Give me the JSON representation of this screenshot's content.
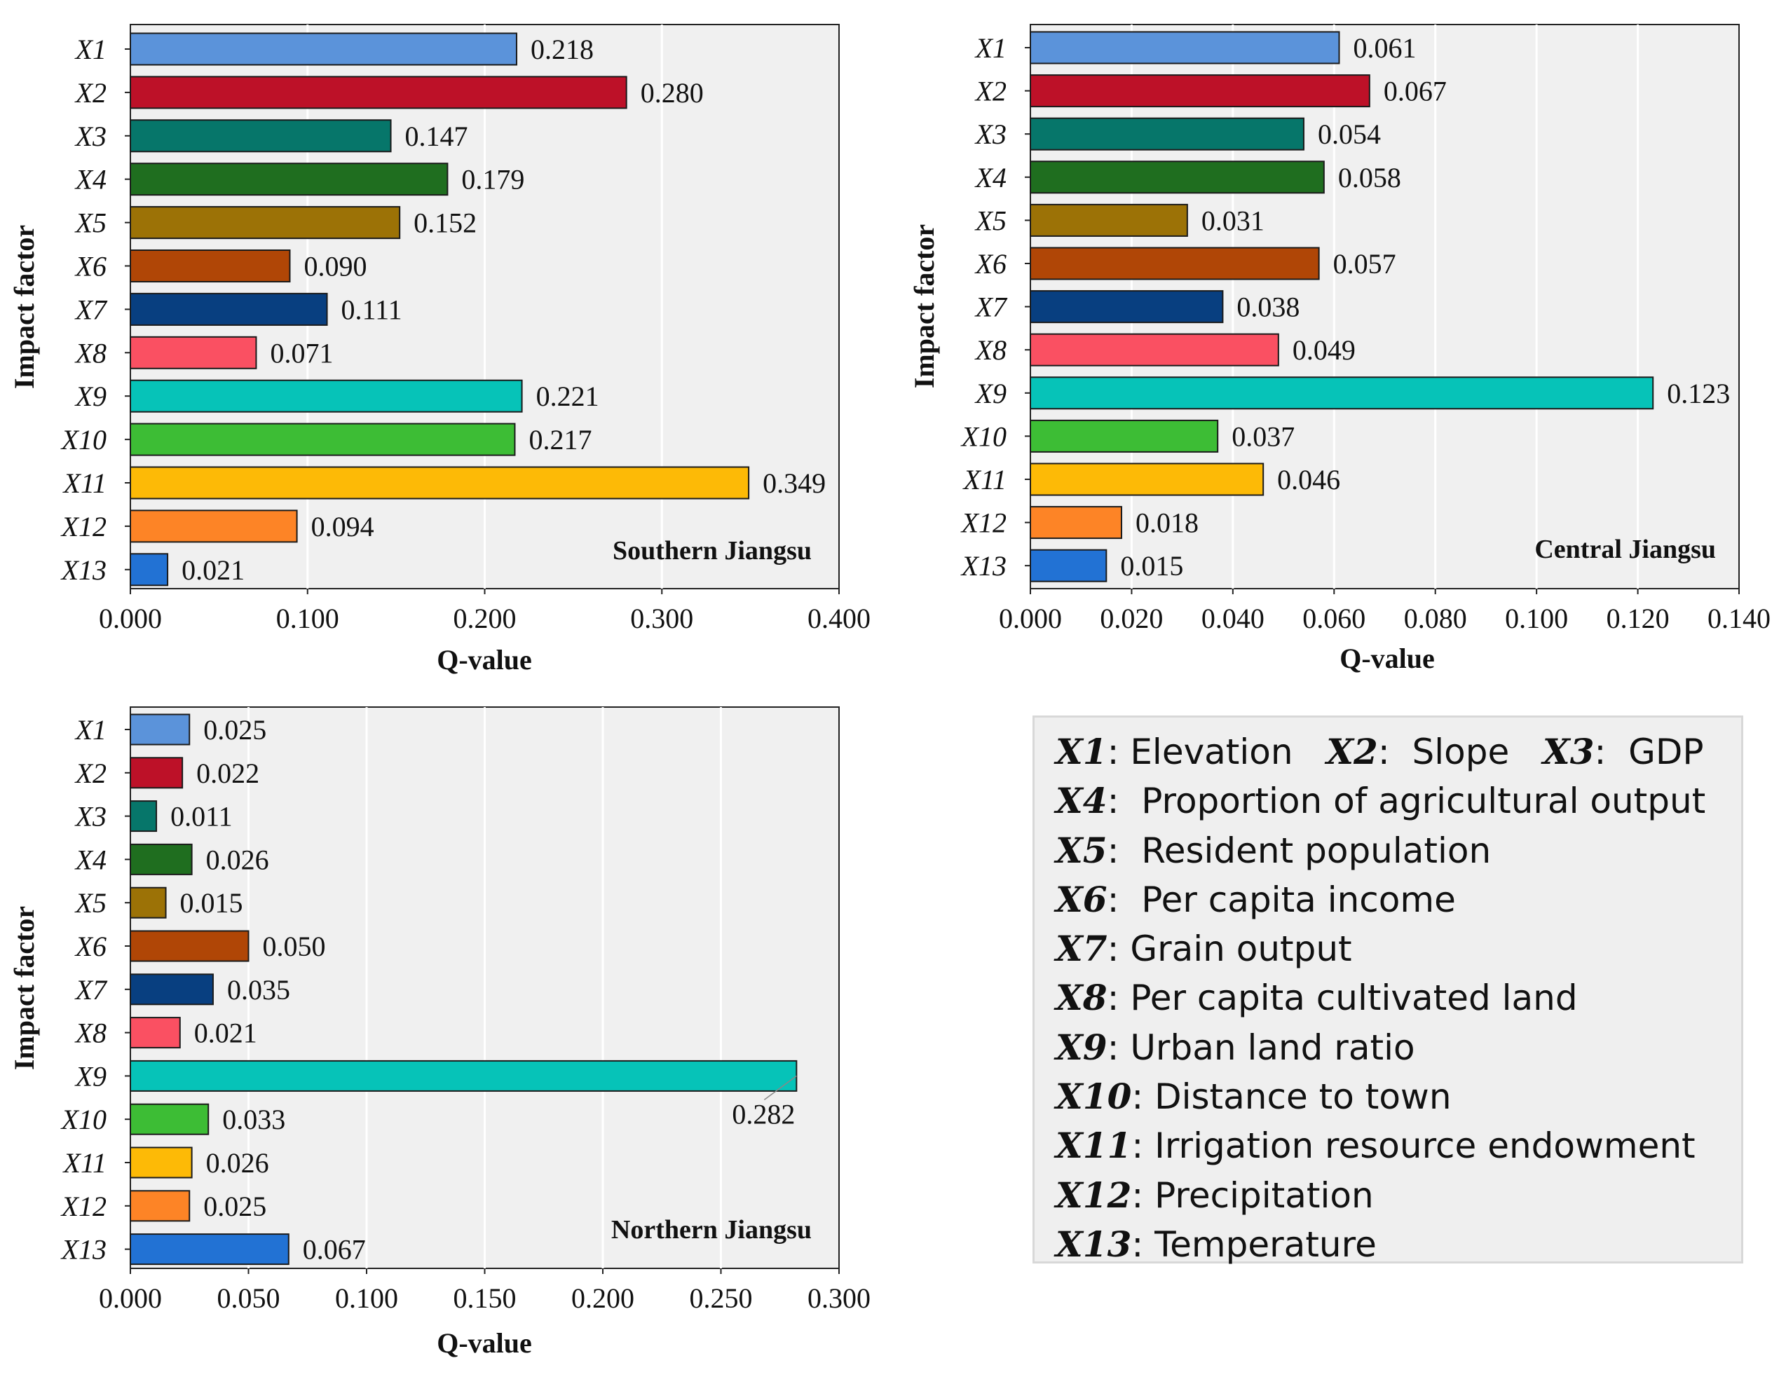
{
  "chart_data": [
    {
      "type": "bar",
      "orientation": "horizontal",
      "region_label": "Southern Jiangsu",
      "categories": [
        "X1",
        "X2",
        "X3",
        "X4",
        "X5",
        "X6",
        "X7",
        "X8",
        "X9",
        "X10",
        "X11",
        "X12",
        "X13"
      ],
      "values": [
        0.218,
        0.28,
        0.147,
        0.179,
        0.152,
        0.09,
        0.111,
        0.071,
        0.221,
        0.217,
        0.349,
        0.094,
        0.021
      ],
      "value_labels": [
        "0.218",
        "0.280",
        "0.147",
        "0.179",
        "0.152",
        "0.090",
        "0.111",
        "0.071",
        "0.221",
        "0.217",
        "0.349",
        "0.094",
        "0.021"
      ],
      "xlabel": "Q-value",
      "ylabel": "Impact factor",
      "xlim": [
        0,
        0.4
      ],
      "xticks": [
        "0.000",
        "0.100",
        "0.200",
        "0.300",
        "0.400"
      ],
      "grid": true
    },
    {
      "type": "bar",
      "orientation": "horizontal",
      "region_label": "Central Jiangsu",
      "categories": [
        "X1",
        "X2",
        "X3",
        "X4",
        "X5",
        "X6",
        "X7",
        "X8",
        "X9",
        "X10",
        "X11",
        "X12",
        "X13"
      ],
      "values": [
        0.061,
        0.067,
        0.054,
        0.058,
        0.031,
        0.057,
        0.038,
        0.049,
        0.123,
        0.037,
        0.046,
        0.018,
        0.015
      ],
      "value_labels": [
        "0.061",
        "0.067",
        "0.054",
        "0.058",
        "0.031",
        "0.057",
        "0.038",
        "0.049",
        "0.123",
        "0.037",
        "0.046",
        "0.018",
        "0.015"
      ],
      "xlabel": "Q-value",
      "ylabel": "Impact factor",
      "xlim": [
        0,
        0.14
      ],
      "xticks": [
        "0.000",
        "0.020",
        "0.040",
        "0.060",
        "0.080",
        "0.100",
        "0.120",
        "0.140"
      ],
      "grid": true
    },
    {
      "type": "bar",
      "orientation": "horizontal",
      "region_label": "Northern  Jiangsu",
      "categories": [
        "X1",
        "X2",
        "X3",
        "X4",
        "X5",
        "X6",
        "X7",
        "X8",
        "X9",
        "X10",
        "X11",
        "X12",
        "X13"
      ],
      "values": [
        0.025,
        0.022,
        0.011,
        0.026,
        0.015,
        0.05,
        0.035,
        0.021,
        0.282,
        0.033,
        0.026,
        0.025,
        0.067
      ],
      "value_labels": [
        "0.025",
        "0.022",
        "0.011",
        "0.026",
        "0.015",
        "0.050",
        "0.035",
        "0.021",
        "0.282",
        "0.033",
        "0.026",
        "0.025",
        "0.067"
      ],
      "xlabel": "Q-value",
      "ylabel": "Impact factor",
      "xlim": [
        0,
        0.3
      ],
      "xticks": [
        "0.000",
        "0.050",
        "0.100",
        "0.150",
        "0.200",
        "0.250",
        "0.300"
      ],
      "grid": true
    }
  ],
  "colors": [
    "#5b93da",
    "#bd1128",
    "#06766a",
    "#1f6e1f",
    "#9c7206",
    "#b04606",
    "#083f80",
    "#fa5062",
    "#06c3b8",
    "#3dbd35",
    "#fdba06",
    "#fd8426",
    "#2272d4"
  ],
  "legend": {
    "items": [
      {
        "segments": [
          {
            "key": "X1",
            "text": ": Elevation   "
          },
          {
            "key": "X2",
            "text": ":  Slope   "
          },
          {
            "key": "X3",
            "text": ":  GDP"
          }
        ]
      },
      {
        "segments": [
          {
            "key": "X4",
            "text": ":  Proportion of agricultural output"
          }
        ]
      },
      {
        "segments": [
          {
            "key": "X5",
            "text": ":  Resident population"
          }
        ]
      },
      {
        "segments": [
          {
            "key": "X6",
            "text": ":  Per capita income"
          }
        ]
      },
      {
        "segments": [
          {
            "key": "X7",
            "text": ": Grain output"
          }
        ]
      },
      {
        "segments": [
          {
            "key": "X8",
            "text": ": Per capita cultivated land"
          }
        ]
      },
      {
        "segments": [
          {
            "key": "X9",
            "text": ": Urban land ratio"
          }
        ]
      },
      {
        "segments": [
          {
            "key": "X10",
            "text": ": Distance to town"
          }
        ]
      },
      {
        "segments": [
          {
            "key": "X11",
            "text": ": Irrigation resource endowment"
          }
        ]
      },
      {
        "segments": [
          {
            "key": "X12",
            "text": ": Precipitation"
          }
        ]
      },
      {
        "segments": [
          {
            "key": "X13",
            "text": ": Temperature"
          }
        ]
      }
    ]
  }
}
